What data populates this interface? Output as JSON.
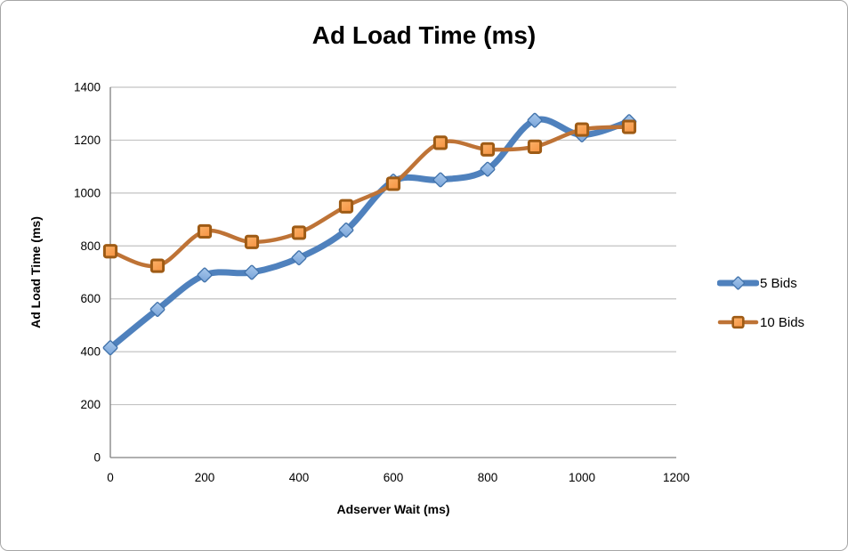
{
  "chart_data": {
    "type": "line",
    "title": "Ad Load Time (ms)",
    "xlabel": "Adserver Wait (ms)",
    "ylabel": "Ad Load Time (ms)",
    "x": [
      0,
      100,
      200,
      300,
      400,
      500,
      600,
      700,
      800,
      900,
      1000,
      1100
    ],
    "series": [
      {
        "name": "5 Bids",
        "marker": "diamond",
        "line_color": "#4F81BD",
        "marker_fill": "#7FA9DC",
        "marker_fill_light": "#A8C8EC",
        "marker_stroke": "#4374AC",
        "line_width": 7,
        "values": [
          415,
          560,
          690,
          700,
          755,
          860,
          1045,
          1050,
          1090,
          1275,
          1220,
          1270
        ]
      },
      {
        "name": "10 Bids",
        "marker": "square",
        "line_color": "#BE7336",
        "marker_fill": "#F79646",
        "marker_fill_light": "#FBB269",
        "marker_stroke": "#9E5B15",
        "line_width": 4.5,
        "values": [
          780,
          725,
          855,
          815,
          850,
          950,
          1035,
          1190,
          1165,
          1175,
          1240,
          1250
        ]
      }
    ],
    "xlim": [
      0,
      1200
    ],
    "ylim": [
      0,
      1400
    ],
    "x_ticks": [
      0,
      200,
      400,
      600,
      800,
      1000,
      1200
    ],
    "y_ticks": [
      0,
      200,
      400,
      600,
      800,
      1000,
      1200,
      1400
    ],
    "grid": true,
    "legend_position": "right",
    "axis_color": "#808080",
    "grid_color": "#c3c3c3"
  }
}
